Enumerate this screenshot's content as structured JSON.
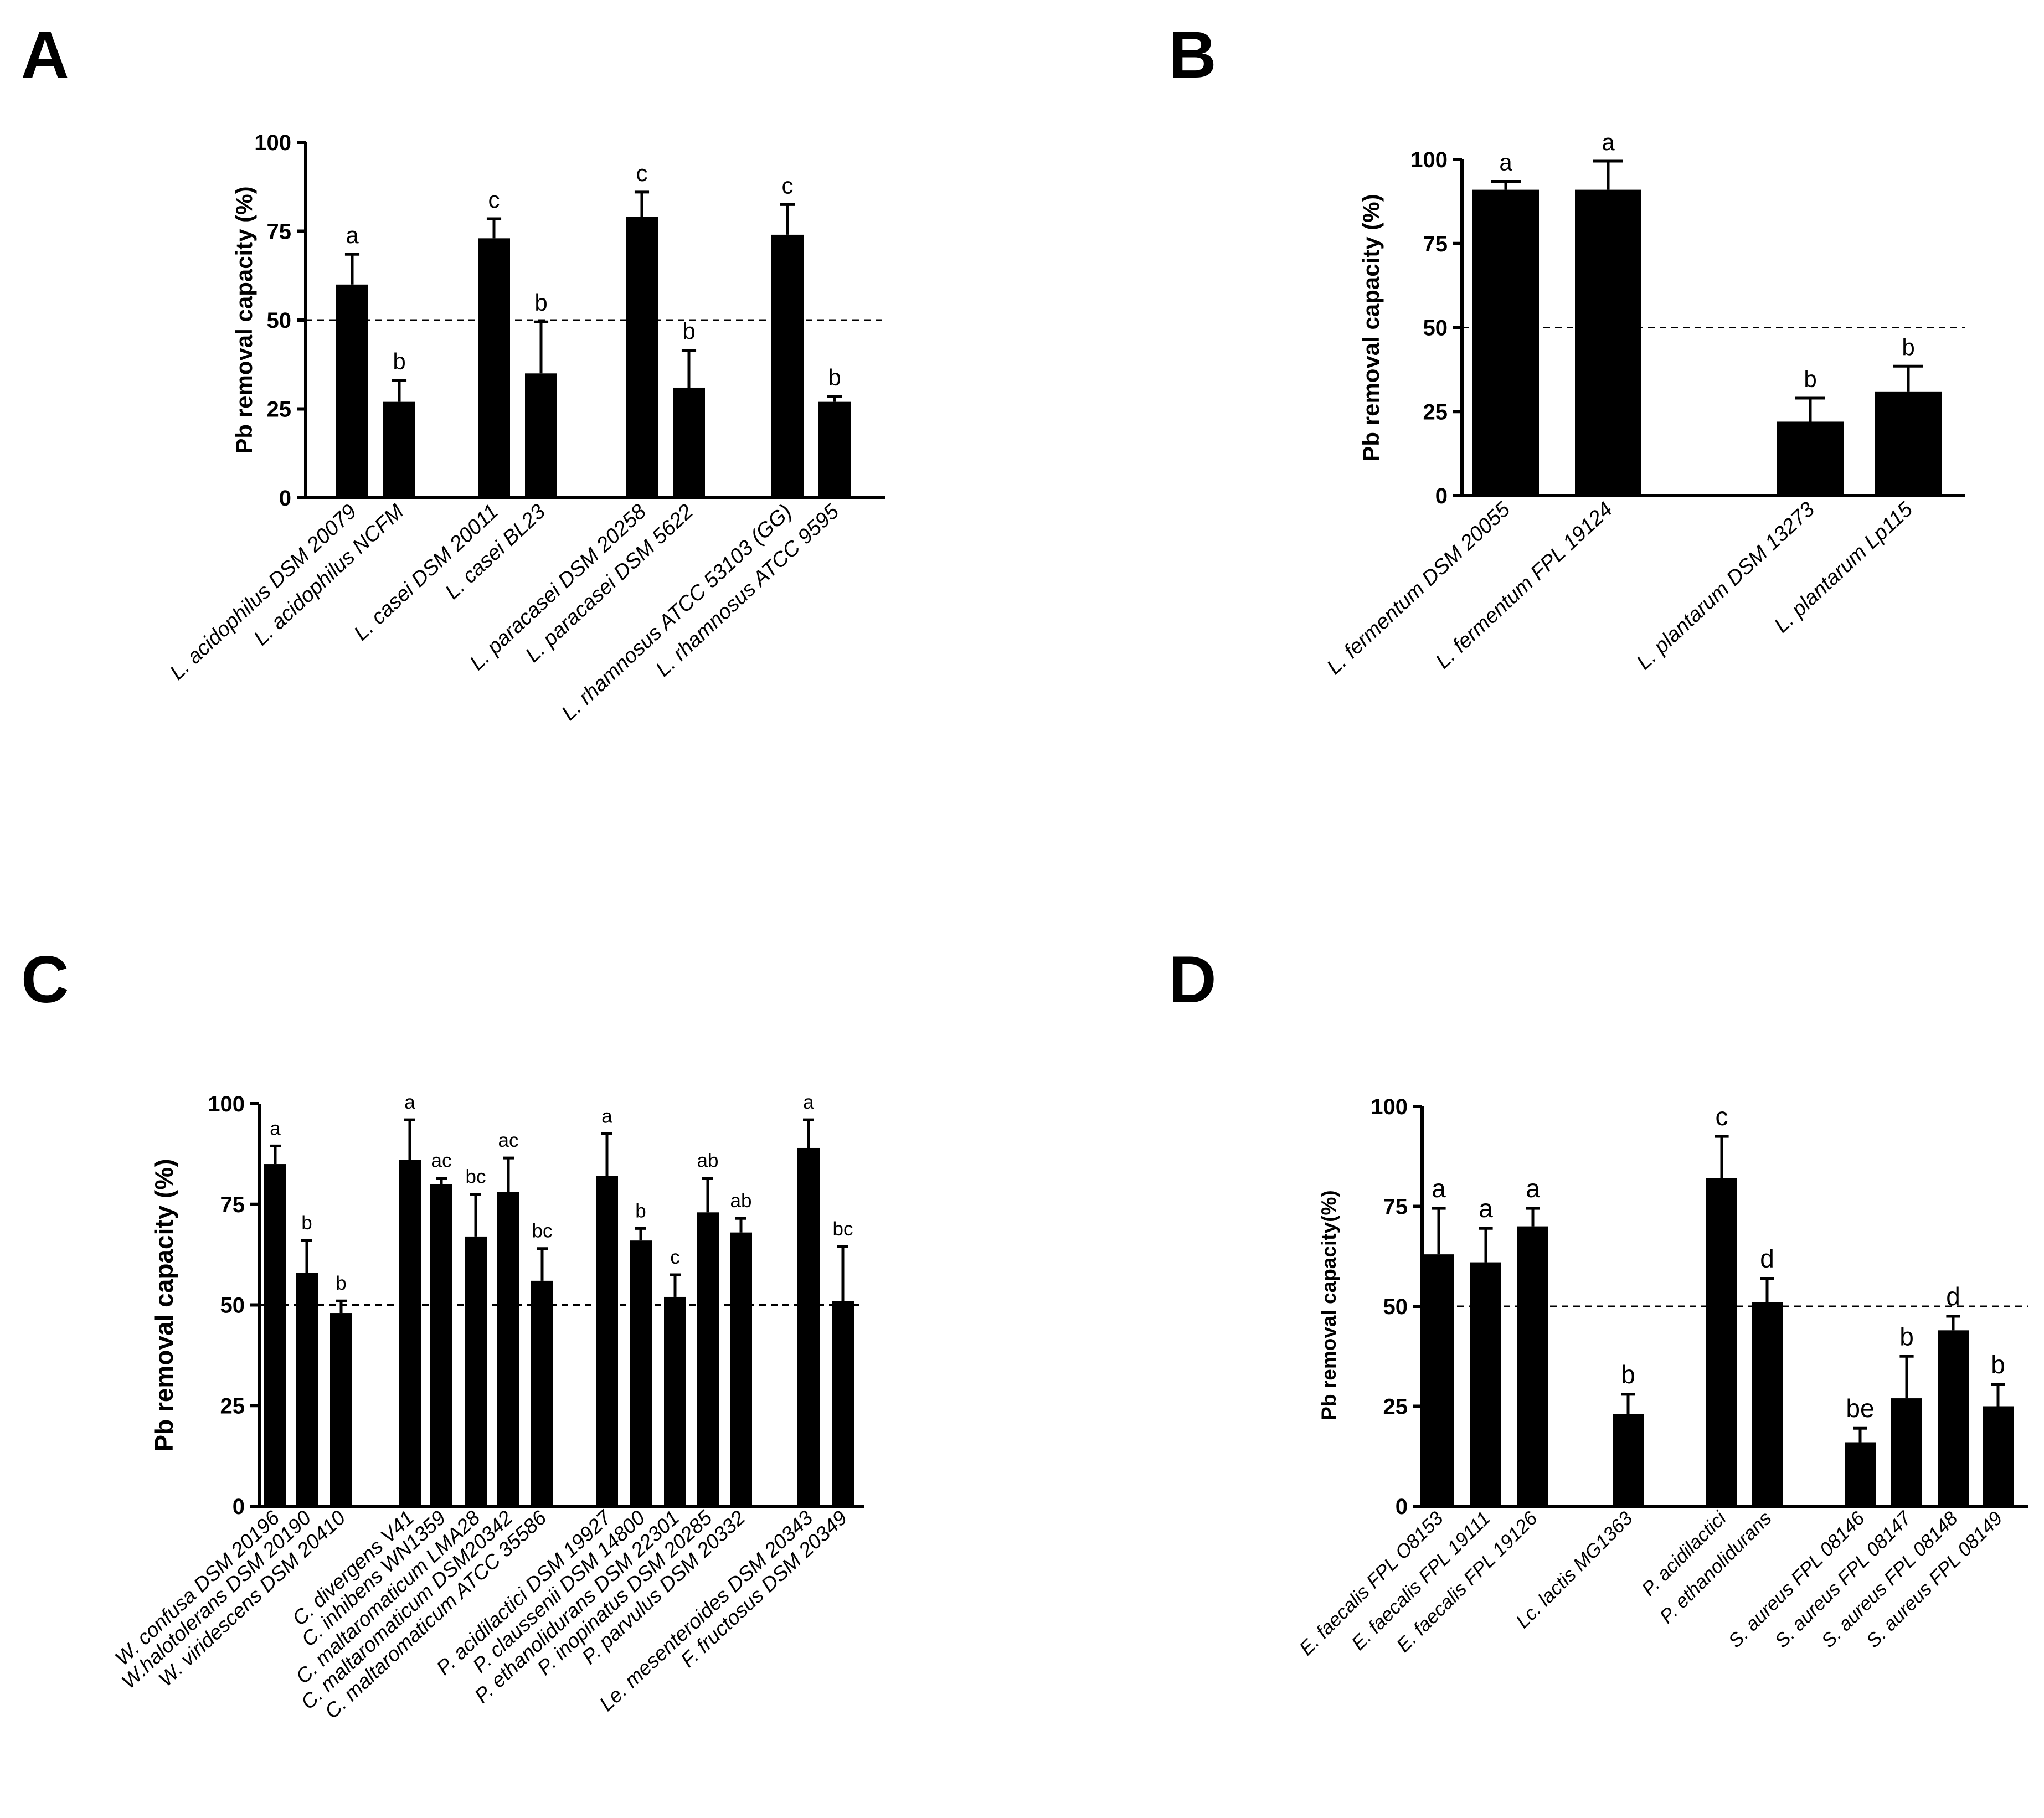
{
  "chart_data": [
    {
      "panel": "A",
      "type": "bar",
      "ylabel": "Pb removal capacity (%)",
      "ylim": [
        0,
        100
      ],
      "yticks": [
        0,
        25,
        50,
        75,
        100
      ],
      "reference_line": 50,
      "categories": [
        "L. acidophilus DSM 20079",
        "L. acidophilus NCFM",
        "L. casei DSM 20011",
        "L. casei BL23",
        "L. paracasei  DSM 20258",
        "L. paracasei  DSM 5622",
        "L. rhamnosus ATCC 53103 (GG)",
        "L. rhamnosus ATCC 9595"
      ],
      "groups": [
        0,
        0,
        1,
        1,
        2,
        2,
        3,
        3
      ],
      "values": [
        60,
        27,
        73,
        35,
        79,
        31,
        74,
        27
      ],
      "errors": [
        8.5,
        6,
        5.5,
        14.5,
        7,
        10.5,
        8.5,
        1.5
      ],
      "sig_labels": [
        "a",
        "b",
        "c",
        "b",
        "c",
        "b",
        "c",
        "b"
      ]
    },
    {
      "panel": "B",
      "type": "bar",
      "ylabel": "Pb removal capacity (%)",
      "ylim": [
        0,
        100
      ],
      "yticks": [
        0,
        25,
        50,
        75,
        100
      ],
      "reference_line": 50,
      "categories": [
        "L. fermentum DSM 20055",
        "L. fermentum FPL 19124",
        "L. plantarum DSM 13273",
        "L. plantarum Lp115"
      ],
      "groups": [
        0,
        0,
        1,
        1
      ],
      "values": [
        91,
        91,
        22,
        31
      ],
      "errors": [
        2.5,
        8.5,
        7,
        7.5
      ],
      "sig_labels": [
        "a",
        "a",
        "b",
        "b"
      ]
    },
    {
      "panel": "C",
      "type": "bar",
      "ylabel": "Pb removal capacity (%)",
      "ylim": [
        0,
        100
      ],
      "yticks": [
        0,
        25,
        50,
        75,
        100
      ],
      "reference_line": 50,
      "categories": [
        "W. confusa DSM 20196",
        "W.halotolerans DSM 20190",
        "W. viridescens DSM 20410",
        "C. divergens V41",
        "C. inhibens WN1359",
        "C. maltaromaticum LMA28",
        "C. maltaromaticum DSM20342",
        "C. maltaromaticum ATCC 35586",
        "P. acidilactici DSM 19927",
        "P. claussenii DSM 14800",
        "P. ethanolidurans DSM 22301",
        "P. inopinatus DSM 20285",
        "P. parvulus DSM 20332",
        "Le. mesenteroides DSM 20343",
        "F. fructosus DSM 20349"
      ],
      "groups": [
        0,
        0,
        0,
        1,
        1,
        1,
        1,
        1,
        2,
        2,
        2,
        2,
        2,
        3,
        3
      ],
      "values": [
        85,
        58,
        48,
        86,
        80,
        67,
        78,
        56,
        82,
        66,
        52,
        73,
        68,
        89,
        51
      ],
      "errors": [
        4.5,
        8,
        3,
        10,
        1.5,
        10.5,
        8.5,
        8,
        10.5,
        3,
        5.5,
        8.5,
        3.5,
        7,
        13.5
      ],
      "sig_labels": [
        "a",
        "b",
        "b",
        "a",
        "ac",
        "bc",
        "ac",
        "bc",
        "a",
        "b",
        "c",
        "ab",
        "ab",
        "a",
        "bc"
      ]
    },
    {
      "panel": "D",
      "type": "bar",
      "ylabel": "Pb removal capacity(%)",
      "ylim": [
        0,
        100
      ],
      "yticks": [
        0,
        25,
        50,
        75,
        100
      ],
      "reference_line": 50,
      "categories": [
        "E. faecalis FPL O8153",
        "E. faecalis FPL 19111",
        "E. faecalis FPL 19126",
        "Lc. lactis MG1363",
        "P. acidilactici",
        "P. ethanolidurans",
        "S. aureus FPL 08146",
        "S. aureus FPL 08147",
        "S. aureus FPL 08148",
        "S. aureus FPL 08149"
      ],
      "groups": [
        0,
        0,
        0,
        1,
        2,
        2,
        3,
        3,
        3,
        3
      ],
      "values": [
        63,
        61,
        70,
        23,
        82,
        51,
        16,
        27,
        44,
        25
      ],
      "errors": [
        11.5,
        8.5,
        4.5,
        5,
        10.5,
        6,
        3.5,
        10.5,
        3.5,
        5.5
      ],
      "sig_labels": [
        "a",
        "a",
        "a",
        "b",
        "c",
        "d",
        "be",
        "b",
        "d",
        "b"
      ]
    }
  ]
}
